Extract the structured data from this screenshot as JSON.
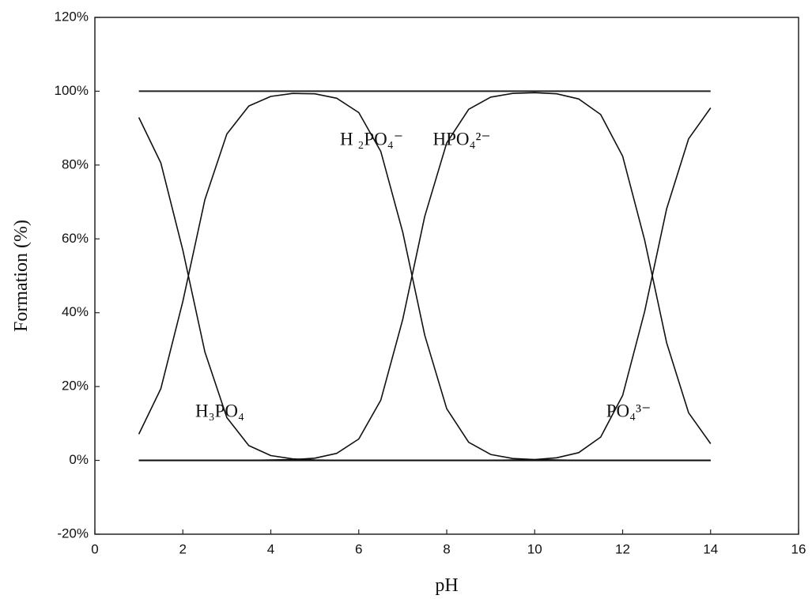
{
  "chart_data": {
    "type": "line",
    "xlabel": "pH",
    "ylabel": "Formation (%)",
    "xlim": [
      0,
      16
    ],
    "xticks": [
      0,
      2,
      4,
      6,
      8,
      10,
      12,
      14,
      16
    ],
    "ylim": [
      -20,
      120
    ],
    "yticks": [
      {
        "value": -20,
        "label": "-20%"
      },
      {
        "value": 0,
        "label": "0%"
      },
      {
        "value": 20,
        "label": "20%"
      },
      {
        "value": 40,
        "label": "40%"
      },
      {
        "value": 60,
        "label": "60%"
      },
      {
        "value": 80,
        "label": "80%"
      },
      {
        "value": 100,
        "label": "100%"
      },
      {
        "value": 120,
        "label": "120%"
      }
    ],
    "hlines": [
      0,
      100
    ],
    "x": [
      1,
      1.5,
      2,
      2.5,
      3,
      3.5,
      4,
      4.5,
      5,
      5.5,
      6,
      6.5,
      7,
      7.5,
      8,
      8.5,
      9,
      9.5,
      10,
      10.5,
      11,
      11.5,
      12,
      12.5,
      13,
      13.5,
      14
    ],
    "series": [
      {
        "name": "H₃PO₄",
        "color": "#111111",
        "values": [
          92.9,
          80.6,
          56.9,
          29.4,
          11.6,
          4.0,
          1.3,
          0.4,
          0.1,
          0,
          0,
          0,
          0,
          0,
          0,
          0,
          0,
          0,
          0,
          0,
          0,
          0,
          0,
          0,
          0,
          0,
          0
        ]
      },
      {
        "name": "H ₂PO₄⁻",
        "color": "#111111",
        "values": [
          7.1,
          19.4,
          43.1,
          70.6,
          88.4,
          96.0,
          98.6,
          99.4,
          99.3,
          98.1,
          94.2,
          83.7,
          61.8,
          33.9,
          14.0,
          4.9,
          1.6,
          0.5,
          0.2,
          0.1,
          0,
          0,
          0,
          0,
          0,
          0,
          0
        ]
      },
      {
        "name": "HPO₄²⁻",
        "color": "#111111",
        "values": [
          0,
          0,
          0,
          0,
          0,
          0,
          0.1,
          0.2,
          0.6,
          1.9,
          5.8,
          16.3,
          38.2,
          66.1,
          86.0,
          95.1,
          98.4,
          99.4,
          99.6,
          99.3,
          97.9,
          93.7,
          82.4,
          59.7,
          31.9,
          12.9,
          4.5
        ]
      },
      {
        "name": "PO₄³⁻",
        "color": "#111111",
        "values": [
          0,
          0,
          0,
          0,
          0,
          0,
          0,
          0,
          0,
          0,
          0,
          0,
          0,
          0,
          0,
          0,
          0,
          0.1,
          0.2,
          0.7,
          2.1,
          6.3,
          17.6,
          40.3,
          68.1,
          87.1,
          95.5
        ]
      }
    ]
  }
}
